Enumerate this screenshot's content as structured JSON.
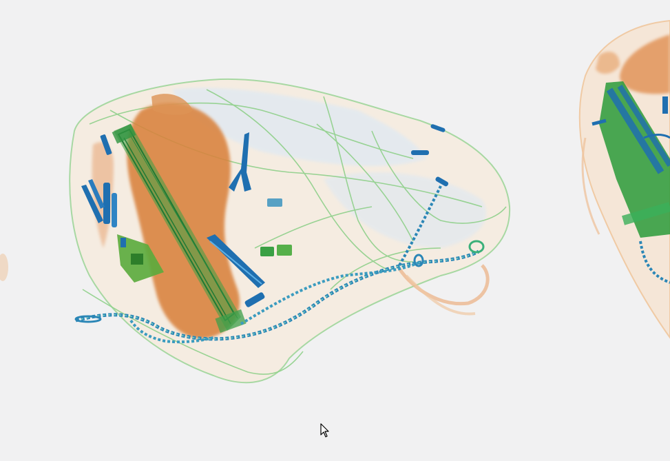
{
  "scan": {
    "colors": {
      "background": "#f1f1f2",
      "organic": "#d9823c",
      "organic_light": "#ecc7a4",
      "inorganic": "#6cc06a",
      "inorganic_dark": "#2a9a3a",
      "metal": "#1f6fb0",
      "metal_light": "#9cc4e6",
      "outline": "#8fd08a"
    },
    "objects": [
      {
        "name": "bag-left",
        "material": "mixed"
      },
      {
        "name": "bag-right-partial",
        "material": "mixed"
      },
      {
        "name": "chain",
        "material": "metal"
      }
    ]
  },
  "cursor": {
    "icon": "arrow-cursor-icon"
  }
}
